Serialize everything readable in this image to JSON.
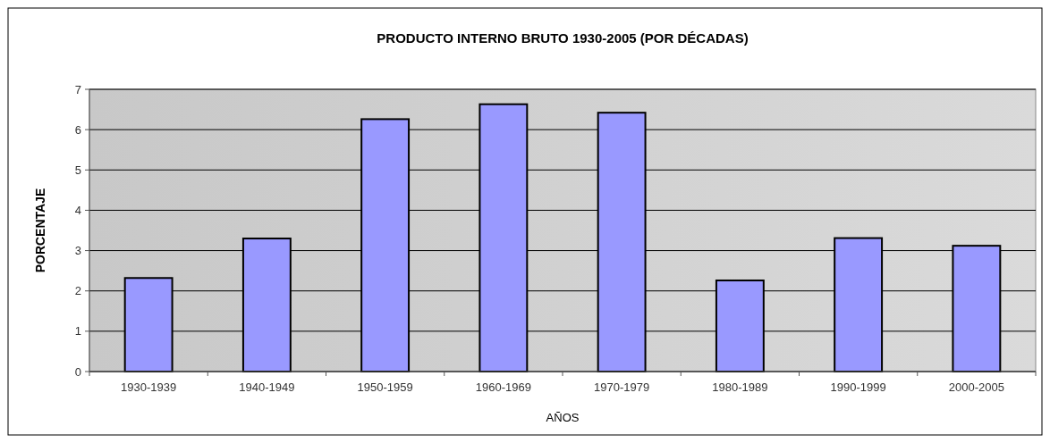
{
  "chart_data": {
    "type": "bar",
    "title": "PRODUCTO INTERNO BRUTO 1930-2005 (POR DÉCADAS)",
    "xlabel": "AÑOS",
    "ylabel": "PORCENTAJE",
    "categories": [
      "1930-1939",
      "1940-1949",
      "1950-1959",
      "1960-1969",
      "1970-1979",
      "1980-1989",
      "1990-1999",
      "2000-2005"
    ],
    "values": [
      2.32,
      3.3,
      6.26,
      6.63,
      6.42,
      2.26,
      3.31,
      3.12
    ],
    "color": "#9999ff",
    "ylim": [
      0,
      7
    ],
    "yticks": [
      0,
      1,
      2,
      3,
      4,
      5,
      6,
      7
    ],
    "grid": "y"
  }
}
